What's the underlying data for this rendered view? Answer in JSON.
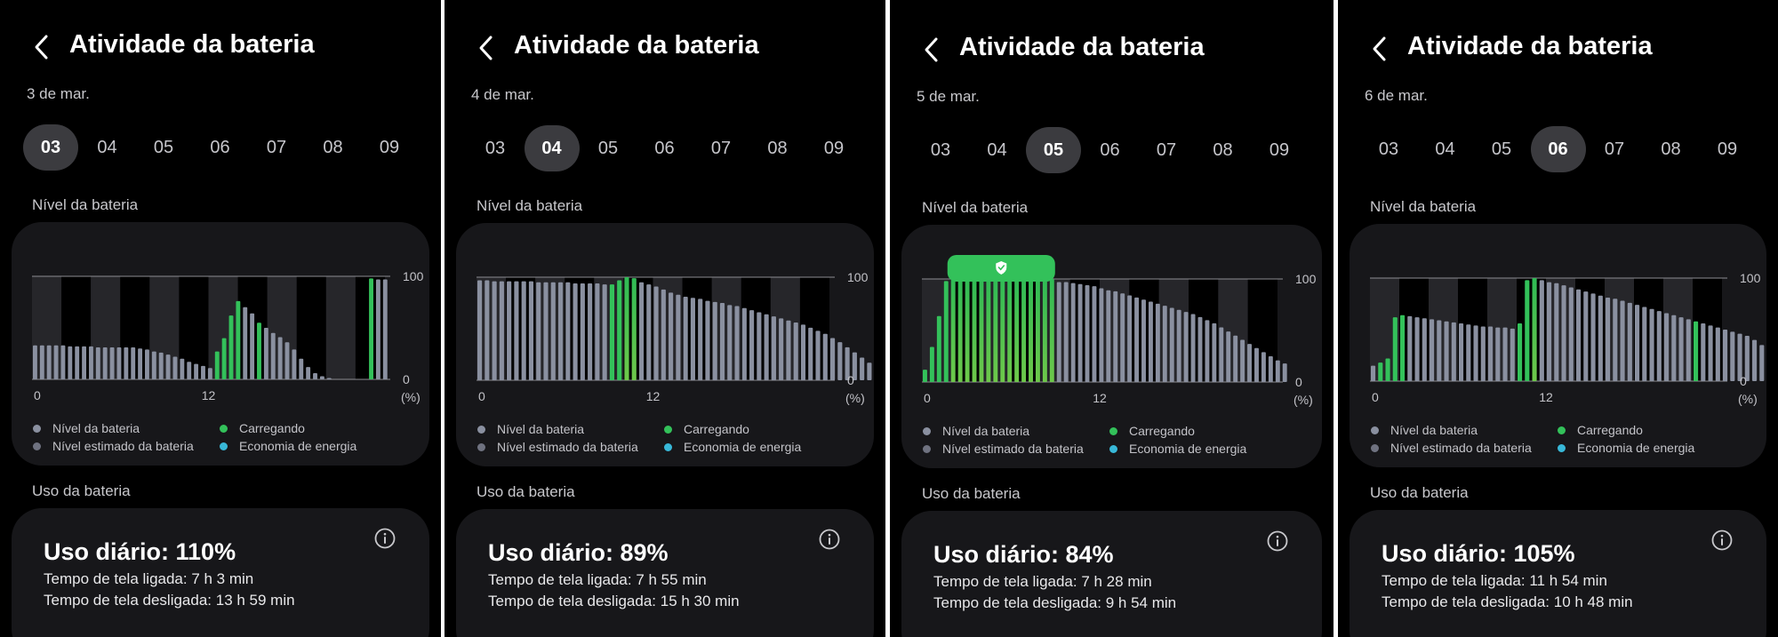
{
  "colors": {
    "battery": "#8a90a0",
    "charging": "#33c15a",
    "estimated": "#6f7280",
    "saver": "#38b8d8",
    "card": "#17171a",
    "selected_day": "#3b3b3f"
  },
  "icons": {
    "back": "chevron-left-icon",
    "info": "info-icon",
    "shield": "shield-check-icon"
  },
  "panels": [
    {
      "header": {
        "title": "Atividade da bateria"
      },
      "date_label": "3 de mar.",
      "days": [
        "03",
        "04",
        "05",
        "06",
        "07",
        "08",
        "09"
      ],
      "selected_day": "03",
      "battery_level": {
        "section_title": "Nível da bateria",
        "y_labels": [
          "100",
          "0",
          "(%)"
        ],
        "x_labels": [
          "0",
          "12"
        ],
        "legend": [
          "Nível da bateria",
          "Nível estimado da bateria",
          "Carregando",
          "Economia de energia"
        ]
      },
      "chart_data": {
        "type": "bar",
        "title": "",
        "x_ticks": [
          "0",
          "12"
        ],
        "ylim": [
          0,
          100
        ],
        "values": [
          33,
          33,
          33,
          33,
          33,
          32,
          32,
          32,
          32,
          31,
          31,
          31,
          31,
          31,
          31,
          30,
          29,
          27,
          26,
          24,
          22,
          20,
          17,
          15,
          13,
          11,
          27,
          40,
          62,
          76,
          70,
          64,
          55,
          50,
          45,
          41,
          36,
          29,
          20,
          12,
          6,
          3,
          1,
          0,
          0,
          0,
          0,
          0,
          98,
          97,
          97
        ],
        "charging": [
          0,
          0,
          0,
          0,
          0,
          0,
          0,
          0,
          0,
          0,
          0,
          0,
          0,
          0,
          0,
          0,
          0,
          0,
          0,
          0,
          0,
          0,
          0,
          0,
          0,
          0,
          1,
          1,
          1,
          1,
          0,
          0,
          1,
          0,
          0,
          0,
          0,
          0,
          0,
          0,
          0,
          0,
          0,
          0,
          0,
          0,
          0,
          0,
          1,
          0,
          0
        ],
        "estimated": [],
        "battery_saver": []
      },
      "usage": {
        "section_title": "Uso da bateria",
        "daily": "Uso diário: 110%",
        "screen_on": "Tempo de tela ligada: 7 h 3 min",
        "screen_off": "Tempo de tela desligada: 13 h 59 min"
      }
    },
    {
      "header": {
        "title": "Atividade da bateria"
      },
      "date_label": "4 de mar.",
      "days": [
        "03",
        "04",
        "05",
        "06",
        "07",
        "08",
        "09"
      ],
      "selected_day": "04",
      "battery_level": {
        "section_title": "Nível da bateria",
        "y_labels": [
          "100",
          "0",
          "(%)"
        ],
        "x_labels": [
          "0",
          "12"
        ],
        "legend": [
          "Nível da bateria",
          "Nível estimado da bateria",
          "Carregando",
          "Economia de energia"
        ]
      },
      "chart_data": {
        "type": "bar",
        "title": "",
        "x_ticks": [
          "0",
          "12"
        ],
        "ylim": [
          0,
          100
        ],
        "values": [
          97,
          97,
          96,
          96,
          96,
          96,
          96,
          96,
          95,
          95,
          95,
          95,
          95,
          94,
          94,
          94,
          94,
          93,
          93,
          97,
          100,
          99,
          95,
          93,
          91,
          88,
          85,
          83,
          81,
          80,
          79,
          77,
          76,
          75,
          73,
          72,
          70,
          68,
          66,
          64,
          62,
          60,
          58,
          56,
          54,
          51,
          48,
          45,
          41,
          37,
          32,
          27,
          22,
          17,
          13
        ],
        "charging": [
          0,
          0,
          0,
          0,
          0,
          0,
          0,
          0,
          0,
          0,
          0,
          0,
          0,
          0,
          0,
          0,
          0,
          0,
          1,
          1,
          1,
          1,
          0,
          0,
          0,
          0,
          0,
          0,
          0,
          0,
          0,
          0,
          0,
          0,
          0,
          0,
          0,
          0,
          0,
          0,
          0,
          0,
          0,
          0,
          0,
          0,
          0,
          0,
          0,
          0,
          0,
          0,
          0,
          0,
          0
        ],
        "estimated": [],
        "battery_saver": []
      },
      "usage": {
        "section_title": "Uso da bateria",
        "daily": "Uso diário: 89%",
        "screen_on": "Tempo de tela ligada: 7 h 55 min",
        "screen_off": "Tempo de tela desligada: 15 h 30 min"
      }
    },
    {
      "header": {
        "title": "Atividade da bateria"
      },
      "date_label": "5 de mar.",
      "days": [
        "03",
        "04",
        "05",
        "06",
        "07",
        "08",
        "09"
      ],
      "selected_day": "05",
      "battery_level": {
        "section_title": "Nível da bateria",
        "y_labels": [
          "100",
          "0",
          "(%)"
        ],
        "x_labels": [
          "0",
          "12"
        ],
        "legend": [
          "Nível da bateria",
          "Nível estimado da bateria",
          "Carregando",
          "Economia de energia"
        ]
      },
      "chart_data": {
        "type": "bar",
        "title": "",
        "x_ticks": [
          "0",
          "12"
        ],
        "ylim": [
          0,
          100
        ],
        "values": [
          12,
          34,
          64,
          98,
          100,
          100,
          100,
          100,
          100,
          100,
          100,
          100,
          100,
          100,
          100,
          100,
          100,
          100,
          100,
          97,
          97,
          96,
          95,
          94,
          93,
          91,
          89,
          88,
          86,
          84,
          82,
          80,
          78,
          76,
          74,
          72,
          70,
          68,
          66,
          63,
          60,
          57,
          53,
          49,
          45,
          41,
          37,
          33,
          29,
          25,
          21,
          18
        ],
        "charging": [
          1,
          1,
          1,
          1,
          1,
          1,
          1,
          1,
          1,
          1,
          1,
          1,
          1,
          1,
          1,
          1,
          1,
          1,
          1,
          0,
          0,
          0,
          0,
          0,
          0,
          0,
          0,
          0,
          0,
          0,
          0,
          0,
          0,
          0,
          0,
          0,
          0,
          0,
          0,
          0,
          0,
          0,
          0,
          0,
          0,
          0,
          0,
          0,
          0,
          0,
          0,
          0
        ],
        "estimated": [],
        "battery_saver": []
      },
      "usage": {
        "section_title": "Uso da bateria",
        "daily": "Uso diário: 84%",
        "screen_on": "Tempo de tela ligada: 7 h 28 min",
        "screen_off": "Tempo de tela desligada: 9 h 54 min"
      }
    },
    {
      "header": {
        "title": "Atividade da bateria"
      },
      "date_label": "6 de mar.",
      "days": [
        "03",
        "04",
        "05",
        "06",
        "07",
        "08",
        "09"
      ],
      "selected_day": "06",
      "battery_level": {
        "section_title": "Nível da bateria",
        "y_labels": [
          "100",
          "0",
          "(%)"
        ],
        "x_labels": [
          "0",
          "12"
        ],
        "legend": [
          "Nível da bateria",
          "Nível estimado da bateria",
          "Carregando",
          "Economia de energia"
        ]
      },
      "chart_data": {
        "type": "bar",
        "title": "",
        "x_ticks": [
          "0",
          "12"
        ],
        "ylim": [
          0,
          100
        ],
        "values": [
          15,
          18,
          22,
          62,
          64,
          63,
          62,
          61,
          60,
          59,
          58,
          57,
          56,
          55,
          54,
          53,
          53,
          52,
          52,
          51,
          56,
          98,
          100,
          98,
          96,
          95,
          93,
          91,
          89,
          87,
          85,
          83,
          81,
          80,
          78,
          76,
          74,
          72,
          70,
          68,
          66,
          64,
          62,
          60,
          58,
          56,
          54,
          52,
          50,
          48,
          46,
          44,
          40,
          35,
          28,
          22
        ],
        "charging": [
          0,
          1,
          1,
          1,
          1,
          0,
          0,
          0,
          0,
          0,
          0,
          0,
          0,
          0,
          0,
          0,
          0,
          0,
          0,
          0,
          1,
          1,
          1,
          0,
          0,
          0,
          0,
          0,
          0,
          0,
          0,
          0,
          0,
          0,
          0,
          0,
          0,
          0,
          0,
          0,
          0,
          0,
          0,
          0,
          1,
          0,
          0,
          0,
          0,
          0,
          0,
          0,
          0,
          0,
          0,
          0
        ],
        "estimated": [],
        "battery_saver": []
      },
      "usage": {
        "section_title": "Uso da bateria",
        "daily": "Uso diário: 105%",
        "screen_on": "Tempo de tela ligada: 11 h 54 min",
        "screen_off": "Tempo de tela desligada: 10 h 48 min"
      }
    }
  ]
}
